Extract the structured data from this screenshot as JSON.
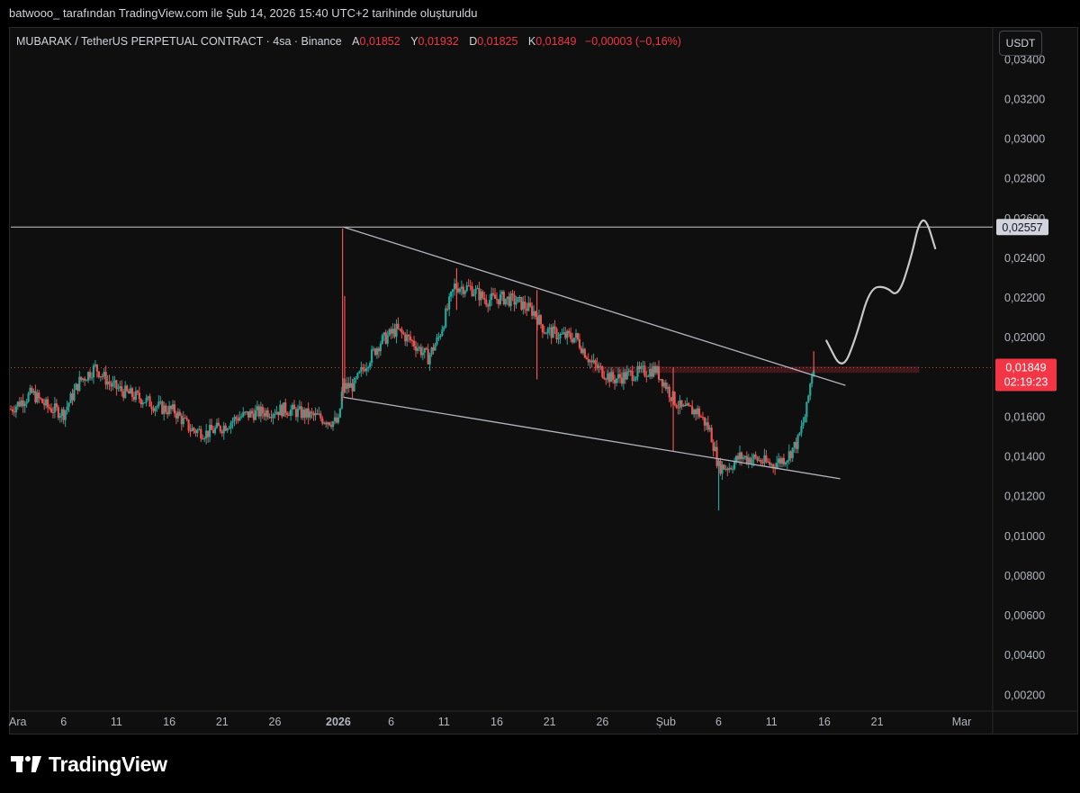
{
  "header": {
    "attribution": "batwooo_ tarafından TradingView.com ile Şub 14, 2026 15:40 UTC+2 tarihinde oluşturuldu"
  },
  "legend": {
    "symbol": "MUBARAK / TetherUS PERPETUAL CONTRACT · 4sa · Binance",
    "open_label": "A",
    "open": "0,01852",
    "high_label": "Y",
    "high": "0,01932",
    "low_label": "D",
    "low": "0,01825",
    "close_label": "K",
    "close": "0,01849",
    "change": "−0,00003 (−0,16%)"
  },
  "currency_button": "USDT",
  "brand": "TradingView",
  "colors": {
    "up": "#26a69a",
    "down": "#ef5350",
    "background": "#0f0f0f",
    "grid_text": "#b2b5be",
    "trendline": "#b2b5be",
    "zone": "#4a1a1e"
  },
  "chart_data": {
    "type": "candlestick",
    "y_ticks": [
      "0,03400",
      "0,03200",
      "0,03000",
      "0,02800",
      "0,02600",
      "0,02400",
      "0,02200",
      "0,02000",
      "0,01800",
      "0,01600",
      "0,01400",
      "0,01200",
      "0,01000",
      "0,00800",
      "0,00600",
      "0,00400",
      "0,00200"
    ],
    "y_tick_values": [
      0.034,
      0.032,
      0.03,
      0.028,
      0.026,
      0.024,
      0.022,
      0.02,
      0.018,
      0.016,
      0.014,
      0.012,
      0.01,
      0.008,
      0.006,
      0.004,
      0.002
    ],
    "ylim": [
      0.0012,
      0.0356
    ],
    "x_ticks": [
      {
        "label": "Ara",
        "day": 0
      },
      {
        "label": "6",
        "day": 5
      },
      {
        "label": "11",
        "day": 10
      },
      {
        "label": "16",
        "day": 15
      },
      {
        "label": "21",
        "day": 20
      },
      {
        "label": "26",
        "day": 25
      },
      {
        "label": "2026",
        "day": 31,
        "bold": true
      },
      {
        "label": "6",
        "day": 36
      },
      {
        "label": "11",
        "day": 41
      },
      {
        "label": "16",
        "day": 46
      },
      {
        "label": "21",
        "day": 51
      },
      {
        "label": "26",
        "day": 56
      },
      {
        "label": "Şub",
        "day": 62
      },
      {
        "label": "6",
        "day": 67
      },
      {
        "label": "11",
        "day": 72
      },
      {
        "label": "16",
        "day": 77
      },
      {
        "label": "21",
        "day": 82
      },
      {
        "label": "Mar",
        "day": 90
      }
    ],
    "xlim_days": [
      0,
      92
    ],
    "horizontal_line": {
      "value": 0.02557,
      "label": "0,02557"
    },
    "last_price": {
      "value": 0.01849,
      "label": "0,01849",
      "countdown": "02:19:23"
    },
    "resistance_zone": {
      "low": 0.01823,
      "high": 0.01855,
      "from_day": 55,
      "to_day": 86
    },
    "trendlines": [
      {
        "from": {
          "day": 31.5,
          "value": 0.02557
        },
        "to": {
          "day": 79,
          "value": 0.0176
        }
      },
      {
        "from": {
          "day": 31.5,
          "value": 0.017
        },
        "to": {
          "day": 78.5,
          "value": 0.0129
        }
      }
    ],
    "projection_path": [
      {
        "day": 77.2,
        "value": 0.01985
      },
      {
        "day": 78.7,
        "value": 0.0183
      },
      {
        "day": 80,
        "value": 0.02
      },
      {
        "day": 81.3,
        "value": 0.0225
      },
      {
        "day": 82.8,
        "value": 0.0226
      },
      {
        "day": 84,
        "value": 0.022
      },
      {
        "day": 85.3,
        "value": 0.0242
      },
      {
        "day": 85.9,
        "value": 0.0257
      },
      {
        "day": 86.6,
        "value": 0.02605
      },
      {
        "day": 87.5,
        "value": 0.0245
      }
    ],
    "anchors": [
      [
        0,
        0.0164
      ],
      [
        2,
        0.0172
      ],
      [
        3.5,
        0.0165
      ],
      [
        5,
        0.0162
      ],
      [
        6.5,
        0.0178
      ],
      [
        8,
        0.0185
      ],
      [
        9.5,
        0.0176
      ],
      [
        11,
        0.0172
      ],
      [
        12.5,
        0.0169
      ],
      [
        14,
        0.0165
      ],
      [
        15.5,
        0.0163
      ],
      [
        17,
        0.0154
      ],
      [
        18.5,
        0.0152
      ],
      [
        20,
        0.0155
      ],
      [
        21.5,
        0.016
      ],
      [
        23,
        0.0162
      ],
      [
        24.5,
        0.0163
      ],
      [
        26,
        0.0164
      ],
      [
        27.5,
        0.0162
      ],
      [
        29,
        0.016
      ],
      [
        31,
        0.0157
      ],
      [
        31.4,
        0.0175
      ],
      [
        32.5,
        0.0176
      ],
      [
        33.5,
        0.0186
      ],
      [
        35,
        0.0198
      ],
      [
        36.5,
        0.0204
      ],
      [
        38,
        0.0198
      ],
      [
        39.5,
        0.019
      ],
      [
        40.5,
        0.02
      ],
      [
        42,
        0.0226
      ],
      [
        43.5,
        0.0225
      ],
      [
        45,
        0.0219
      ],
      [
        46.5,
        0.022
      ],
      [
        48,
        0.0218
      ],
      [
        49.5,
        0.0213
      ],
      [
        50.5,
        0.0204
      ],
      [
        52,
        0.0201
      ],
      [
        53.5,
        0.02
      ],
      [
        55,
        0.0187
      ],
      [
        57,
        0.0179
      ],
      [
        59,
        0.0182
      ],
      [
        61,
        0.0184
      ],
      [
        62,
        0.0176
      ],
      [
        62.6,
        0.017
      ],
      [
        63.5,
        0.0164
      ],
      [
        65,
        0.0163
      ],
      [
        66.2,
        0.0153
      ],
      [
        67,
        0.0135
      ],
      [
        68,
        0.0135
      ],
      [
        69,
        0.014
      ],
      [
        70.5,
        0.0139
      ],
      [
        72,
        0.0136
      ],
      [
        73.5,
        0.014
      ],
      [
        74.5,
        0.0148
      ],
      [
        75.3,
        0.0163
      ],
      [
        75.8,
        0.0182
      ],
      [
        76,
        0.01849
      ]
    ],
    "spikes": [
      {
        "day": 31.4,
        "high": 0.0255,
        "low": 0.0168
      },
      {
        "day": 31.6,
        "high": 0.0221,
        "low": 0.0172
      },
      {
        "day": 42.2,
        "high": 0.0235,
        "low": 0.0214
      },
      {
        "day": 49.8,
        "high": 0.0224,
        "low": 0.0179
      },
      {
        "day": 62.7,
        "high": 0.0185,
        "low": 0.0143
      },
      {
        "day": 67,
        "high": 0.0139,
        "low": 0.0113
      },
      {
        "day": 76,
        "high": 0.01932,
        "low": 0.01825
      }
    ]
  }
}
